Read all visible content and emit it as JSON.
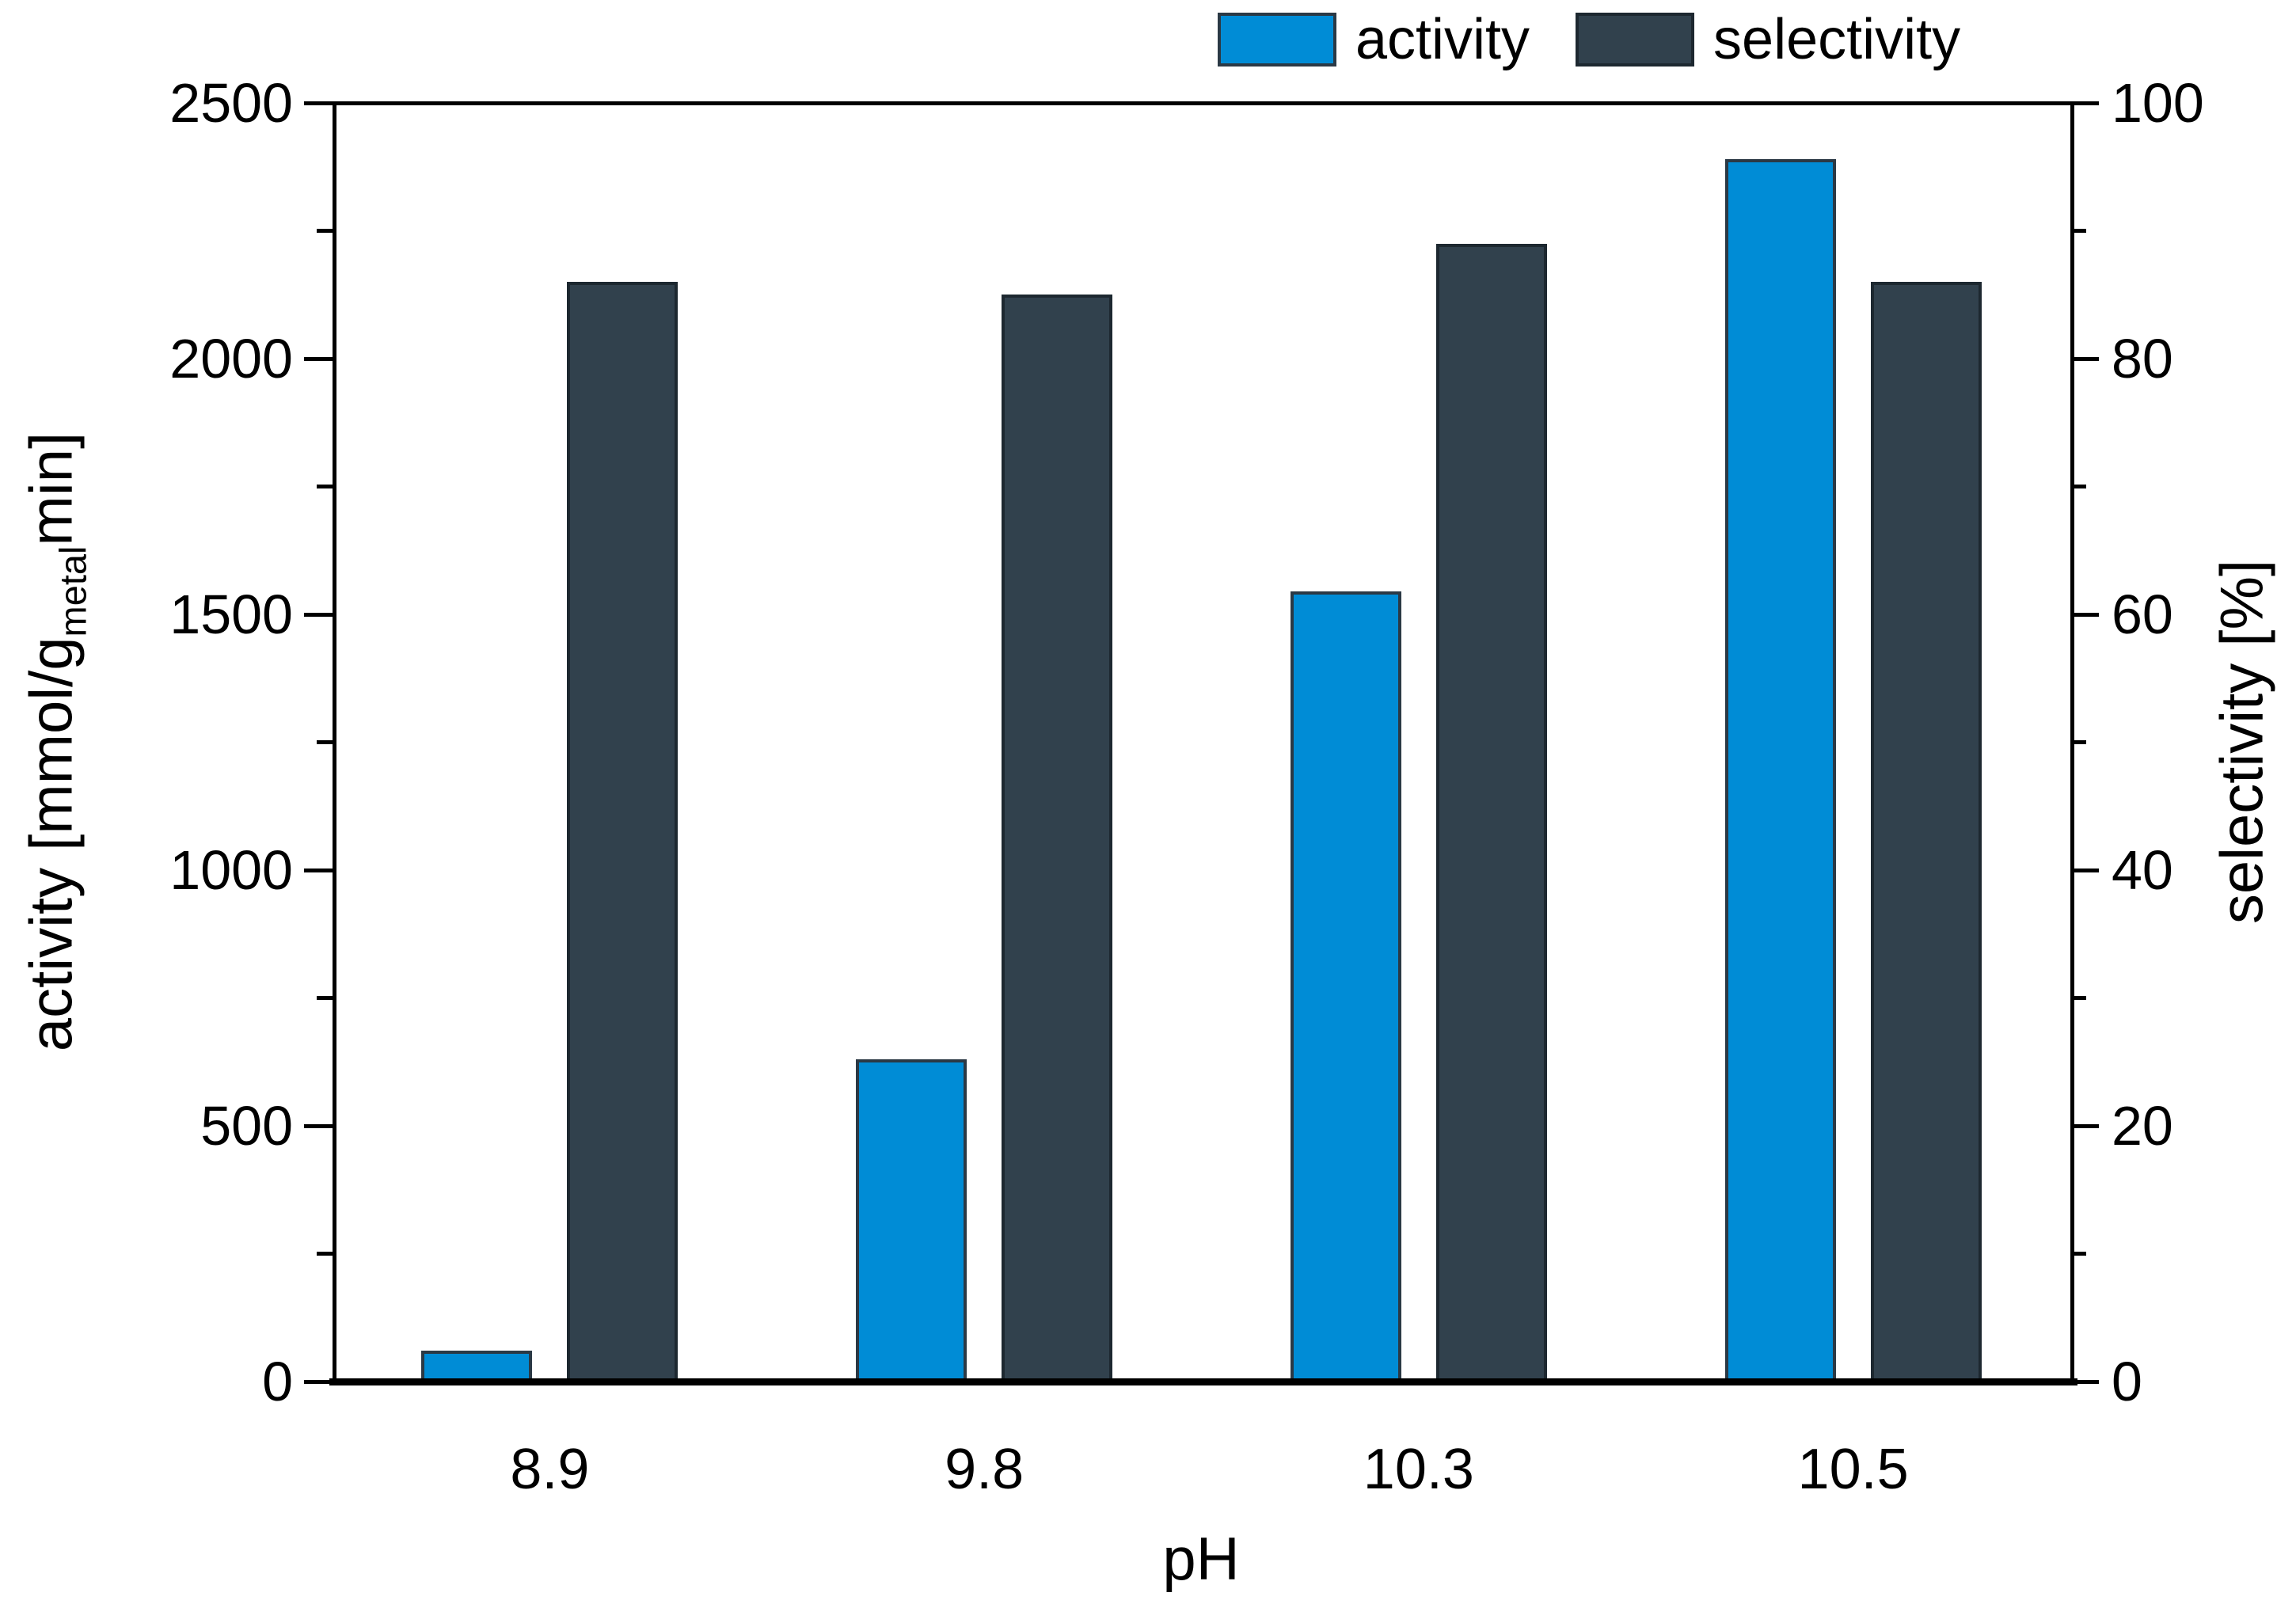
{
  "chart_data": {
    "type": "bar",
    "title": "",
    "xlabel": "pH",
    "categories": [
      "8.9",
      "9.8",
      "10.3",
      "10.5"
    ],
    "series": [
      {
        "name": "activity",
        "axis": "left",
        "color": "#008cd6",
        "edge_color": "#2b3945",
        "values": [
          60,
          630,
          1545,
          2390
        ]
      },
      {
        "name": "selectivity",
        "axis": "right",
        "color": "#31414d",
        "edge_color": "#1d2830",
        "values": [
          86,
          85,
          89,
          86
        ]
      }
    ],
    "left_axis": {
      "label_prefix": "activity [mmol/g",
      "label_sub": "metal",
      "label_suffix": "min]",
      "min": 0,
      "max": 2500,
      "major_step": 500,
      "minor_step": 250,
      "ticks": [
        "0",
        "500",
        "1000",
        "1500",
        "2000",
        "2500"
      ]
    },
    "right_axis": {
      "label": "selectivity [%]",
      "min": 0,
      "max": 100,
      "major_step": 20,
      "minor_step": 10,
      "ticks": [
        "0",
        "20",
        "40",
        "60",
        "80",
        "100"
      ]
    },
    "legend": {
      "position": "top",
      "entries": [
        "activity",
        "selectivity"
      ]
    },
    "grid": "off",
    "plot_background": "#ffffff"
  }
}
